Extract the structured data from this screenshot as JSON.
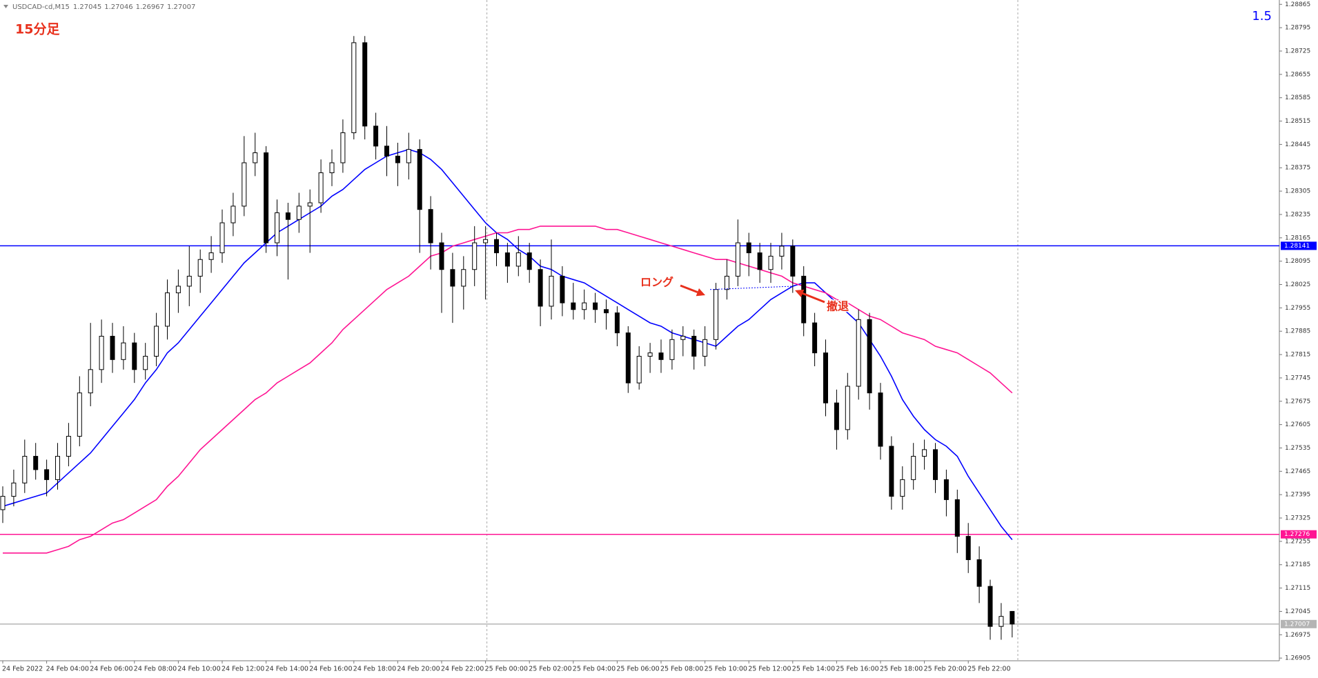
{
  "header": {
    "symbol": "USDCAD-cd,M15"
  },
  "chart_data": {
    "type": "candlestick",
    "title": "15分足",
    "indicator_label": "1.5",
    "categories": [
      "24 Feb 2022",
      null,
      null,
      null,
      "24 Feb 04:00",
      null,
      null,
      null,
      "24 Feb 06:00",
      null,
      null,
      null,
      "24 Feb 08:00",
      null,
      null,
      null,
      "24 Feb 10:00",
      null,
      null,
      null,
      "24 Feb 12:00",
      null,
      null,
      null,
      "24 Feb 14:00",
      null,
      null,
      null,
      "24 Feb 16:00",
      null,
      null,
      null,
      "24 Feb 18:00",
      null,
      null,
      null,
      "24 Feb 20:00",
      null,
      null,
      null,
      "24 Feb 22:00",
      null,
      null,
      null,
      "25 Feb 00:00",
      null,
      null,
      null,
      "25 Feb 02:00",
      null,
      null,
      null,
      "25 Feb 04:00",
      null,
      null,
      null,
      "25 Feb 06:00",
      null,
      null,
      null,
      "25 Feb 08:00",
      null,
      null,
      null,
      "25 Feb 10:00",
      null,
      null,
      null,
      "25 Feb 12:00",
      null,
      null,
      null,
      "25 Feb 14:00",
      null,
      null,
      null,
      "25 Feb 16:00",
      null,
      null,
      null,
      "25 Feb 18:00",
      null,
      null,
      null,
      "25 Feb 20:00",
      null,
      null,
      null,
      "25 Feb 22:00",
      null,
      null,
      null,
      null
    ],
    "ohlc": [
      [
        1.2735,
        1.2742,
        1.2731,
        1.2739
      ],
      [
        1.2739,
        1.2747,
        1.2736,
        1.2743
      ],
      [
        1.2743,
        1.2756,
        1.274,
        1.2751
      ],
      [
        1.2751,
        1.2755,
        1.2744,
        1.2747
      ],
      [
        1.2747,
        1.275,
        1.2739,
        1.2744
      ],
      [
        1.2744,
        1.2755,
        1.2741,
        1.2751
      ],
      [
        1.2751,
        1.2761,
        1.2748,
        1.2757
      ],
      [
        1.2757,
        1.2775,
        1.2754,
        1.277
      ],
      [
        1.277,
        1.2791,
        1.2766,
        1.2777
      ],
      [
        1.2777,
        1.2792,
        1.2773,
        1.2787
      ],
      [
        1.2787,
        1.2791,
        1.2776,
        1.278
      ],
      [
        1.278,
        1.279,
        1.2777,
        1.2785
      ],
      [
        1.2785,
        1.2788,
        1.2773,
        1.2777
      ],
      [
        1.2777,
        1.2785,
        1.2774,
        1.2781
      ],
      [
        1.2781,
        1.2794,
        1.2778,
        1.279
      ],
      [
        1.279,
        1.2804,
        1.2786,
        1.28
      ],
      [
        1.28,
        1.2807,
        1.2794,
        1.2802
      ],
      [
        1.2802,
        1.2814,
        1.2796,
        1.2805
      ],
      [
        1.2805,
        1.2813,
        1.28,
        1.281
      ],
      [
        1.281,
        1.2817,
        1.2806,
        1.2812
      ],
      [
        1.2812,
        1.2825,
        1.2809,
        1.2821
      ],
      [
        1.2821,
        1.283,
        1.2817,
        1.2826
      ],
      [
        1.2826,
        1.2847,
        1.2823,
        1.2839
      ],
      [
        1.2839,
        1.2848,
        1.2835,
        1.2842
      ],
      [
        1.2842,
        1.2844,
        1.2812,
        1.2815
      ],
      [
        1.2815,
        1.2828,
        1.2811,
        1.2824
      ],
      [
        1.2824,
        1.2827,
        1.2804,
        1.2822
      ],
      [
        1.2822,
        1.283,
        1.2818,
        1.2826
      ],
      [
        1.2826,
        1.2831,
        1.2812,
        1.2827
      ],
      [
        1.2827,
        1.284,
        1.2824,
        1.2836
      ],
      [
        1.2836,
        1.2843,
        1.2832,
        1.2839
      ],
      [
        1.2839,
        1.2852,
        1.2836,
        1.2848
      ],
      [
        1.2848,
        1.2877,
        1.2846,
        1.2875
      ],
      [
        1.2875,
        1.2877,
        1.2846,
        1.285
      ],
      [
        1.285,
        1.2854,
        1.284,
        1.2844
      ],
      [
        1.2844,
        1.285,
        1.2835,
        1.2841
      ],
      [
        1.2841,
        1.2845,
        1.2832,
        1.2839
      ],
      [
        1.2839,
        1.2848,
        1.2834,
        1.2843
      ],
      [
        1.2843,
        1.2846,
        1.2812,
        1.2825
      ],
      [
        1.2825,
        1.2829,
        1.2807,
        1.2815
      ],
      [
        1.2815,
        1.2818,
        1.2794,
        1.2807
      ],
      [
        1.2807,
        1.2812,
        1.2791,
        1.2802
      ],
      [
        1.2802,
        1.2811,
        1.2795,
        1.2807
      ],
      [
        1.2807,
        1.282,
        1.2802,
        1.2815
      ],
      [
        1.2815,
        1.282,
        1.2798,
        1.2816
      ],
      [
        1.2816,
        1.2818,
        1.2808,
        1.2812
      ],
      [
        1.2812,
        1.2815,
        1.2803,
        1.2808
      ],
      [
        1.2808,
        1.2817,
        1.2805,
        1.2812
      ],
      [
        1.2812,
        1.2815,
        1.2803,
        1.2807
      ],
      [
        1.2807,
        1.281,
        1.279,
        1.2796
      ],
      [
        1.2796,
        1.2816,
        1.2792,
        1.2805
      ],
      [
        1.2805,
        1.2808,
        1.2793,
        1.2797
      ],
      [
        1.2797,
        1.2803,
        1.2792,
        1.2795
      ],
      [
        1.2795,
        1.2801,
        1.2792,
        1.2797
      ],
      [
        1.2797,
        1.28,
        1.2791,
        1.2795
      ],
      [
        1.2795,
        1.2798,
        1.2789,
        1.2794
      ],
      [
        1.2794,
        1.2796,
        1.2784,
        1.2788
      ],
      [
        1.2788,
        1.279,
        1.277,
        1.2773
      ],
      [
        1.2773,
        1.2784,
        1.2771,
        1.2781
      ],
      [
        1.2781,
        1.2785,
        1.2776,
        1.2782
      ],
      [
        1.2782,
        1.2786,
        1.2776,
        1.278
      ],
      [
        1.278,
        1.2789,
        1.2777,
        1.2786
      ],
      [
        1.2786,
        1.279,
        1.2781,
        1.2787
      ],
      [
        1.2787,
        1.2789,
        1.2777,
        1.2781
      ],
      [
        1.2781,
        1.279,
        1.2778,
        1.2786
      ],
      [
        1.2786,
        1.2803,
        1.2783,
        1.2801
      ],
      [
        1.2801,
        1.281,
        1.2798,
        1.2805
      ],
      [
        1.2805,
        1.2822,
        1.2802,
        1.2815
      ],
      [
        1.2815,
        1.2818,
        1.2805,
        1.2812
      ],
      [
        1.2812,
        1.2815,
        1.2803,
        1.2807
      ],
      [
        1.2807,
        1.2815,
        1.2803,
        1.2811
      ],
      [
        1.2811,
        1.2818,
        1.2807,
        1.2814
      ],
      [
        1.2814,
        1.2816,
        1.28,
        1.2805
      ],
      [
        1.2805,
        1.2808,
        1.2787,
        1.2791
      ],
      [
        1.2791,
        1.2794,
        1.2778,
        1.2782
      ],
      [
        1.2782,
        1.2786,
        1.2763,
        1.2767
      ],
      [
        1.2767,
        1.2771,
        1.2753,
        1.2759
      ],
      [
        1.2759,
        1.2776,
        1.2756,
        1.2772
      ],
      [
        1.2772,
        1.2795,
        1.2768,
        1.2792
      ],
      [
        1.2792,
        1.2794,
        1.2765,
        1.277
      ],
      [
        1.277,
        1.2773,
        1.275,
        1.2754
      ],
      [
        1.2754,
        1.2757,
        1.2735,
        1.2739
      ],
      [
        1.2739,
        1.2748,
        1.2735,
        1.2744
      ],
      [
        1.2744,
        1.2755,
        1.2741,
        1.2751
      ],
      [
        1.2751,
        1.2756,
        1.2747,
        1.2753
      ],
      [
        1.2753,
        1.2755,
        1.274,
        1.2744
      ],
      [
        1.2744,
        1.2747,
        1.2733,
        1.2738
      ],
      [
        1.2738,
        1.2741,
        1.2722,
        1.2727
      ],
      [
        1.2727,
        1.2731,
        1.2716,
        1.272
      ],
      [
        1.272,
        1.2724,
        1.2707,
        1.2712
      ],
      [
        1.2712,
        1.2714,
        1.2696,
        1.27
      ],
      [
        1.27,
        1.2707,
        1.2696,
        1.2703
      ],
      [
        1.27045,
        1.27046,
        1.26967,
        1.27007
      ]
    ],
    "series": [
      {
        "color": "#0000ff",
        "values": [
          1.2736,
          1.2737,
          1.2738,
          1.2739,
          1.274,
          1.2743,
          1.2746,
          1.2749,
          1.2752,
          1.2756,
          1.276,
          1.2764,
          1.2768,
          1.2773,
          1.2777,
          1.2782,
          1.2785,
          1.2789,
          1.2793,
          1.2797,
          1.2801,
          1.2805,
          1.2809,
          1.2812,
          1.2815,
          1.2818,
          1.282,
          1.2822,
          1.2824,
          1.2826,
          1.2829,
          1.2831,
          1.2834,
          1.2837,
          1.2839,
          1.2841,
          1.2842,
          1.2843,
          1.2842,
          1.284,
          1.2837,
          1.2833,
          1.2829,
          1.2825,
          1.2821,
          1.2818,
          1.2816,
          1.2813,
          1.2811,
          1.2808,
          1.2807,
          1.2805,
          1.2804,
          1.2803,
          1.2801,
          1.2799,
          1.2797,
          1.2795,
          1.2793,
          1.2791,
          1.279,
          1.2788,
          1.2787,
          1.2786,
          1.2785,
          1.2784,
          1.2787,
          1.279,
          1.2792,
          1.2795,
          1.2798,
          1.28,
          1.2802,
          1.2803,
          1.2803,
          1.28,
          1.2797,
          1.2794,
          1.2791,
          1.2786,
          1.2781,
          1.2775,
          1.2768,
          1.2763,
          1.2759,
          1.2756,
          1.2754,
          1.2751,
          1.2745,
          1.274,
          1.2735,
          1.273,
          1.2726
        ]
      },
      {
        "color": "#ff1493",
        "values": [
          1.2722,
          1.2722,
          1.2722,
          1.2722,
          1.2722,
          1.2723,
          1.2724,
          1.2726,
          1.2727,
          1.2729,
          1.2731,
          1.2732,
          1.2734,
          1.2736,
          1.2738,
          1.2742,
          1.2745,
          1.2749,
          1.2753,
          1.2756,
          1.2759,
          1.2762,
          1.2765,
          1.2768,
          1.277,
          1.2773,
          1.2775,
          1.2777,
          1.2779,
          1.2782,
          1.2785,
          1.2789,
          1.2792,
          1.2795,
          1.2798,
          1.2801,
          1.2803,
          1.2805,
          1.2808,
          1.2811,
          1.2812,
          1.2814,
          1.2815,
          1.2816,
          1.2817,
          1.2818,
          1.2818,
          1.2819,
          1.2819,
          1.282,
          1.282,
          1.282,
          1.282,
          1.282,
          1.282,
          1.2819,
          1.2819,
          1.2818,
          1.2817,
          1.2816,
          1.2815,
          1.2814,
          1.2813,
          1.2812,
          1.2811,
          1.281,
          1.281,
          1.2809,
          1.2808,
          1.2807,
          1.2806,
          1.2805,
          1.2803,
          1.2802,
          1.2801,
          1.28,
          1.2798,
          1.2797,
          1.2795,
          1.2793,
          1.2792,
          1.279,
          1.2788,
          1.2787,
          1.2786,
          1.2784,
          1.2783,
          1.2782,
          1.278,
          1.2778,
          1.2776,
          1.2773,
          1.277
        ]
      }
    ],
    "hlines": [
      {
        "value": 1.28141,
        "color": "#0000ff"
      },
      {
        "value": 1.27276,
        "color": "#ff1493"
      }
    ],
    "current_color": "#b4b4b4",
    "annotations": [
      {
        "text": "ロング",
        "price": 1.2801
      },
      {
        "text": "撤退",
        "price": 1.2802
      }
    ],
    "ylim": [
      1.26897,
      1.28878
    ],
    "yticks": [
      1.28865,
      1.28795,
      1.28725,
      1.28655,
      1.28585,
      1.28515,
      1.28445,
      1.28375,
      1.28305,
      1.28235,
      1.28165,
      1.28095,
      1.28025,
      1.27955,
      1.27885,
      1.27815,
      1.27745,
      1.27675,
      1.27605,
      1.27535,
      1.27465,
      1.27395,
      1.27325,
      1.27255,
      1.27185,
      1.27115,
      1.27045,
      1.26975,
      1.26905
    ]
  }
}
